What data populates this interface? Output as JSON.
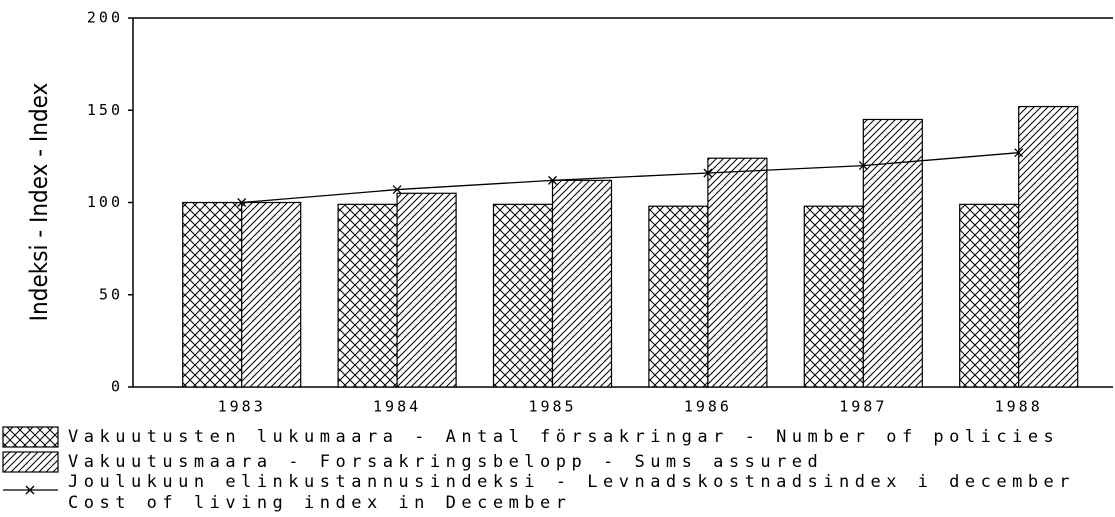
{
  "chart_data": {
    "type": "bar_line",
    "ylabel": "Indeksi - Index - Index",
    "categories": [
      "1983",
      "1984",
      "1985",
      "1986",
      "1987",
      "1988"
    ],
    "series": [
      {
        "name": "Vakuutusten lukumaara - Antal försakringar - Number of policies",
        "type": "bar",
        "pattern": "crosshatch",
        "color": "#000000",
        "values": [
          100,
          99,
          99,
          98,
          98,
          99
        ]
      },
      {
        "name": "Vakuutusmaara - Forsakringsbelopp - Sums assured",
        "type": "bar",
        "pattern": "diagonal",
        "color": "#000000",
        "values": [
          100,
          105,
          112,
          124,
          145,
          152
        ]
      },
      {
        "name": [
          "Joulukuun elinkustannusindeksi - Levnadskostnadsindex i december",
          "Cost of living index in December"
        ],
        "type": "line",
        "color": "#000000",
        "values": [
          100,
          107,
          112,
          116,
          120,
          127
        ]
      }
    ],
    "ylim": [
      0,
      200
    ],
    "yticks": [
      0,
      50,
      100,
      150,
      200
    ],
    "grid": false,
    "legend": "bottom"
  }
}
